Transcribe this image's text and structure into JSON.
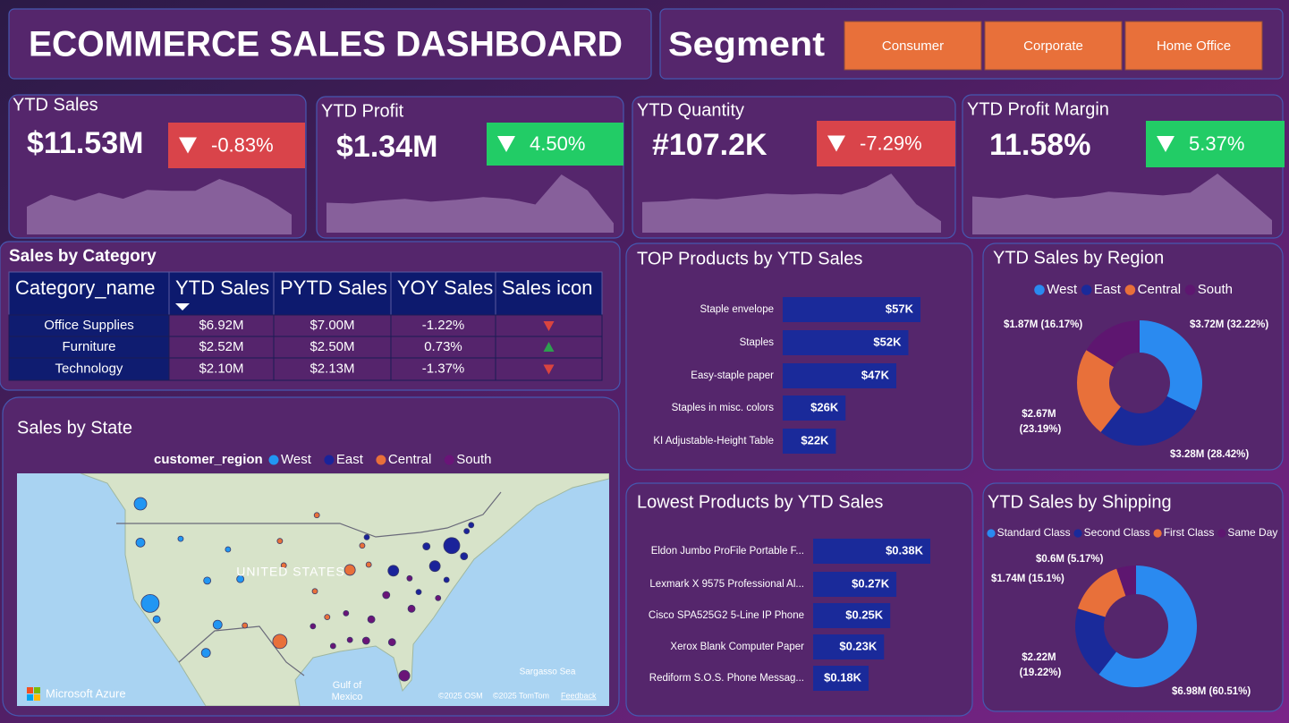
{
  "header": {
    "title": "ECOMMERCE SALES DASHBOARD"
  },
  "segment": {
    "label": "Segment",
    "options": [
      "Consumer",
      "Corporate",
      "Home Office"
    ],
    "color": "#e8703a"
  },
  "kpis": [
    {
      "title": "YTD Sales",
      "value": "$11.53M",
      "change": "-0.83%",
      "change_color": "#d9444a",
      "trend": [
        28,
        40,
        34,
        42,
        36,
        45,
        44,
        44,
        56,
        48,
        36,
        20
      ]
    },
    {
      "title": "YTD Profit",
      "value": "$1.34M",
      "change": "4.50%",
      "change_color": "#22cc66",
      "trend": [
        32,
        31,
        34,
        36,
        33,
        35,
        38,
        36,
        30,
        62,
        45,
        10
      ]
    },
    {
      "title": "YTD Quantity",
      "value": "#107.2K",
      "change": "-7.29%",
      "change_color": "#d9444a",
      "trend": [
        32,
        33,
        36,
        35,
        38,
        41,
        40,
        41,
        40,
        48,
        62,
        30,
        12
      ]
    },
    {
      "title": "YTD Profit Margin",
      "value": "11.58%",
      "change": "5.37%",
      "change_color": "#22cc66",
      "trend": [
        40,
        38,
        42,
        38,
        40,
        45,
        43,
        41,
        44,
        64,
        40,
        15
      ]
    }
  ],
  "table": {
    "title": "Sales by Category",
    "columns": [
      "Category_name",
      "YTD Sales",
      "PYTD Sales",
      "YOY Sales",
      "Sales icon"
    ],
    "rows": [
      [
        "Office Supplies",
        "$6.92M",
        "$7.00M",
        "-1.22%"
      ],
      [
        "Furniture",
        "$2.52M",
        "$2.50M",
        "0.73%"
      ],
      [
        "Technology",
        "$2.10M",
        "$2.13M",
        "-1.37%"
      ]
    ],
    "icons": [
      {
        "direction": "down",
        "color": "#d9443f"
      },
      {
        "direction": "up",
        "color": "#2e9e4f"
      },
      {
        "direction": "down",
        "color": "#d9443f"
      }
    ]
  },
  "chart_data": [
    {
      "type": "map",
      "title": "Sales by State",
      "legend_title": "customer_region",
      "place_labels": [
        "UNITED STATES",
        "Gulf of",
        "Mexico",
        "Sargasso Sea"
      ],
      "provider": "Microsoft Azure",
      "attribution": [
        "©2025 OSM",
        "©2025 TomTom",
        "Feedback"
      ],
      "series": [
        {
          "name": "West",
          "color": "#2196f3",
          "lon": [
            -122.0,
            -122.0,
            -115.8,
            -120.5,
            -119.5,
            -111.7,
            -106.6,
            -110.1,
            -111.9,
            -108.5
          ],
          "lat": [
            47.5,
            42.4,
            42.9,
            34.4,
            32.3,
            37.4,
            37.6,
            31.6,
            27.9,
            41.5
          ],
          "sales": [
            490,
            250,
            90,
            1000,
            160,
            160,
            160,
            250,
            250,
            90
          ]
        },
        {
          "name": "East",
          "color": "#1a239a",
          "lon": [
            -74.0,
            -76.6,
            -72.1,
            -71.7,
            -71.0,
            -77.9,
            -83.0,
            -79.1,
            -74.8,
            -87.1
          ],
          "lat": [
            42.0,
            39.3,
            40.6,
            43.9,
            44.7,
            41.9,
            38.7,
            35.9,
            37.5,
            43.1
          ],
          "sales": [
            810,
            360,
            160,
            90,
            90,
            160,
            360,
            90,
            90,
            90
          ]
        },
        {
          "name": "Central",
          "color": "#e8703a",
          "lon": [
            -100.5,
            -89.7,
            -94.8,
            -100.5,
            -99.9,
            -95.1,
            -93.2,
            -87.8,
            -86.8,
            -105.9
          ],
          "lat": [
            29.4,
            38.8,
            46.0,
            42.6,
            39.4,
            36.0,
            32.6,
            42.0,
            39.5,
            31.5
          ],
          "sales": [
            640,
            360,
            90,
            90,
            90,
            90,
            90,
            90,
            90,
            90
          ]
        },
        {
          "name": "South",
          "color": "#6a1478",
          "lon": [
            -81.3,
            -84.1,
            -86.4,
            -87.2,
            -83.2,
            -92.3,
            -89.7,
            -80.2,
            -80.5,
            -76.1,
            -95.4,
            -90.3
          ],
          "lat": [
            24.9,
            35.5,
            32.3,
            29.5,
            29.3,
            28.8,
            29.6,
            33.7,
            37.7,
            35.1,
            31.4,
            33.1
          ],
          "sales": [
            360,
            160,
            160,
            160,
            160,
            90,
            90,
            160,
            90,
            90,
            90,
            90
          ]
        }
      ]
    },
    {
      "type": "bar",
      "title": "TOP Products by YTD Sales",
      "categories": [
        "Staple envelope",
        "Staples",
        "Easy-staple paper",
        "Staples in misc. colors",
        "KI Adjustable-Height Table"
      ],
      "values": [
        57,
        52,
        47,
        26,
        22
      ],
      "value_labels": [
        "$57K",
        "$52K",
        "$47K",
        "$26K",
        "$22K"
      ],
      "color": "#1a2a9a"
    },
    {
      "type": "donut",
      "title": "YTD Sales by Region",
      "categories": [
        "West",
        "East",
        "Central",
        "South"
      ],
      "values": [
        3.72,
        3.28,
        2.67,
        1.87
      ],
      "value_labels": [
        "$3.72M (32.22%)",
        "$3.28M (28.42%)",
        "$2.67M (23.19%)",
        "$1.87M (16.17%)"
      ],
      "colors": [
        "#2a8af0",
        "#1a2a9a",
        "#e8703a",
        "#5e1670"
      ]
    },
    {
      "type": "bar",
      "title": "Lowest Products by YTD Sales",
      "categories": [
        "Eldon Jumbo ProFile Portable F...",
        "Lexmark X 9575 Professional Al...",
        "Cisco SPA525G2 5-Line IP Phone",
        "Xerox Blank Computer Paper",
        "Rediform S.O.S. Phone Messag..."
      ],
      "values": [
        0.38,
        0.27,
        0.25,
        0.23,
        0.18
      ],
      "value_labels": [
        "$0.38K",
        "$0.27K",
        "$0.25K",
        "$0.23K",
        "$0.18K"
      ],
      "color": "#1a2a9a"
    },
    {
      "type": "donut",
      "title": "YTD Sales by Shipping",
      "categories": [
        "Standard Class",
        "Second Class",
        "First Class",
        "Same Day"
      ],
      "values": [
        6.98,
        2.22,
        1.74,
        0.6
      ],
      "value_labels": [
        "$6.98M (60.51%)",
        "$2.22M (19.22%)",
        "$1.74M (15.1%)",
        "$0.6M (5.17%)"
      ],
      "colors": [
        "#2a8af0",
        "#1a2a9a",
        "#e8703a",
        "#5e1670"
      ]
    }
  ]
}
